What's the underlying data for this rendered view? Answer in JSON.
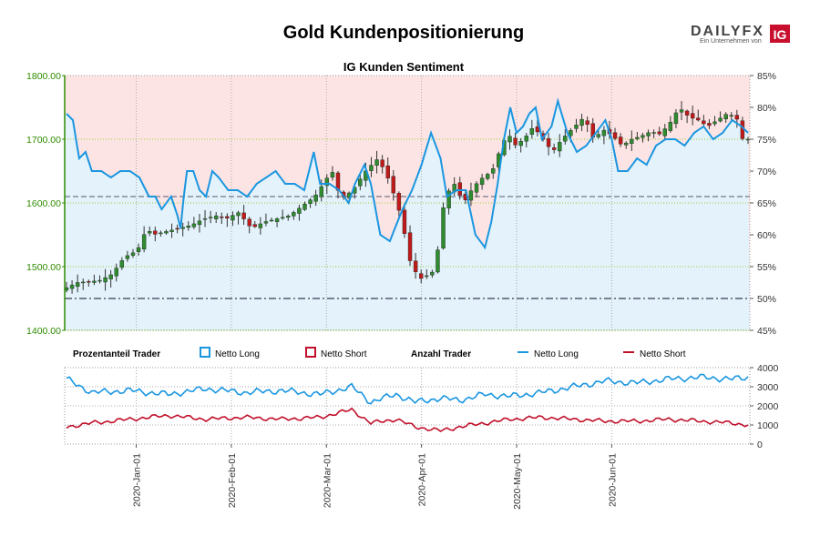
{
  "header": {
    "title": "Gold Kundenpositionierung",
    "logo_text": "DAILYFX",
    "logo_subtext": "Ein Unternehmen von",
    "logo_badge": "IG"
  },
  "chart_data": [
    {
      "type": "candlestick",
      "title": "IG Kunden Sentiment",
      "price_axis": {
        "ticks": [
          "1800.00",
          "1700.00",
          "1600.00",
          "1500.00",
          "1400.00"
        ],
        "ylim": [
          1400,
          1800
        ],
        "color": "#2e8b00"
      },
      "sentiment_axis": {
        "ticks": [
          "85%",
          "80%",
          "75%",
          "70%",
          "65%",
          "60%",
          "55%",
          "50%",
          "45%"
        ],
        "ylim": [
          45,
          85
        ]
      },
      "reference_lines": [
        {
          "value_pct": 66,
          "label": "upper"
        },
        {
          "value_pct": 50,
          "label": "lower"
        }
      ],
      "candle_count": 124,
      "anchors": {
        "price": [
          [
            0,
            1463
          ],
          [
            5,
            1475
          ],
          [
            12,
            1478
          ],
          [
            16,
            1488
          ],
          [
            20,
            1515
          ],
          [
            24,
            1525
          ],
          [
            27,
            1560
          ],
          [
            29,
            1550
          ],
          [
            33,
            1555
          ],
          [
            37,
            1560
          ],
          [
            41,
            1565
          ],
          [
            45,
            1575
          ],
          [
            49,
            1580
          ],
          [
            52,
            1575
          ],
          [
            56,
            1585
          ],
          [
            60,
            1560
          ],
          [
            64,
            1570
          ],
          [
            68,
            1575
          ],
          [
            72,
            1580
          ],
          [
            76,
            1595
          ],
          [
            80,
            1610
          ],
          [
            84,
            1640
          ],
          [
            86,
            1650
          ],
          [
            88,
            1605
          ],
          [
            92,
            1620
          ],
          [
            96,
            1650
          ],
          [
            100,
            1670
          ],
          [
            103,
            1640
          ],
          [
            106,
            1600
          ],
          [
            108,
            1560
          ],
          [
            110,
            1510
          ],
          [
            113,
            1480
          ],
          [
            117,
            1490
          ],
          [
            119,
            1530
          ],
          [
            121,
            1610
          ],
          [
            124,
            1630
          ],
          [
            127,
            1600
          ],
          [
            130,
            1625
          ],
          [
            133,
            1640
          ],
          [
            136,
            1650
          ],
          [
            139,
            1690
          ],
          [
            141,
            1710
          ],
          [
            143,
            1690
          ],
          [
            146,
            1700
          ],
          [
            149,
            1720
          ],
          [
            152,
            1700
          ],
          [
            155,
            1680
          ],
          [
            158,
            1700
          ],
          [
            162,
            1720
          ],
          [
            165,
            1735
          ],
          [
            168,
            1700
          ],
          [
            171,
            1715
          ],
          [
            174,
            1705
          ],
          [
            177,
            1690
          ],
          [
            180,
            1700
          ],
          [
            183,
            1705
          ],
          [
            186,
            1712
          ],
          [
            189,
            1708
          ],
          [
            192,
            1725
          ],
          [
            195,
            1750
          ],
          [
            198,
            1735
          ],
          [
            201,
            1730
          ],
          [
            204,
            1720
          ],
          [
            207,
            1730
          ],
          [
            210,
            1740
          ],
          [
            213,
            1735
          ],
          [
            215,
            1700
          ]
        ],
        "long_pct": [
          [
            0,
            79
          ],
          [
            2,
            78
          ],
          [
            4,
            72
          ],
          [
            6,
            73
          ],
          [
            8,
            70
          ],
          [
            11,
            70
          ],
          [
            14,
            69
          ],
          [
            17,
            70
          ],
          [
            20,
            70
          ],
          [
            23,
            69
          ],
          [
            26,
            66
          ],
          [
            28,
            66
          ],
          [
            30,
            64
          ],
          [
            33,
            66
          ],
          [
            35,
            63
          ],
          [
            36,
            61
          ],
          [
            37,
            66
          ],
          [
            38,
            70
          ],
          [
            40,
            70
          ],
          [
            42,
            67
          ],
          [
            44,
            66
          ],
          [
            46,
            70
          ],
          [
            48,
            69
          ],
          [
            51,
            67
          ],
          [
            54,
            67
          ],
          [
            57,
            66
          ],
          [
            60,
            68
          ],
          [
            63,
            69
          ],
          [
            66,
            70
          ],
          [
            69,
            68
          ],
          [
            72,
            68
          ],
          [
            75,
            67
          ],
          [
            78,
            73
          ],
          [
            80,
            68
          ],
          [
            83,
            68
          ],
          [
            86,
            67
          ],
          [
            89,
            65
          ],
          [
            91,
            68
          ],
          [
            94,
            71
          ],
          [
            96,
            68
          ],
          [
            99,
            60
          ],
          [
            102,
            59
          ],
          [
            106,
            64
          ],
          [
            109,
            67
          ],
          [
            112,
            71
          ],
          [
            115,
            76
          ],
          [
            118,
            72
          ],
          [
            120,
            66
          ],
          [
            123,
            67
          ],
          [
            126,
            67
          ],
          [
            129,
            60
          ],
          [
            132,
            58
          ],
          [
            134,
            62
          ],
          [
            136,
            68
          ],
          [
            138,
            75
          ],
          [
            140,
            80
          ],
          [
            142,
            76
          ],
          [
            144,
            77
          ],
          [
            146,
            79
          ],
          [
            148,
            80
          ],
          [
            150,
            75
          ],
          [
            153,
            77
          ],
          [
            155,
            81
          ],
          [
            158,
            76
          ],
          [
            161,
            73
          ],
          [
            164,
            74
          ],
          [
            167,
            76
          ],
          [
            170,
            78
          ],
          [
            172,
            75
          ],
          [
            174,
            70
          ],
          [
            177,
            70
          ],
          [
            180,
            72
          ],
          [
            183,
            71
          ],
          [
            186,
            74
          ],
          [
            189,
            75
          ],
          [
            192,
            75
          ],
          [
            195,
            74
          ],
          [
            198,
            76
          ],
          [
            201,
            77
          ],
          [
            204,
            75
          ],
          [
            207,
            76
          ],
          [
            210,
            78
          ],
          [
            213,
            77
          ],
          [
            215,
            76
          ]
        ],
        "long_count": [
          [
            0,
            3400
          ],
          [
            8,
            2700
          ],
          [
            20,
            2800
          ],
          [
            32,
            2600
          ],
          [
            44,
            2900
          ],
          [
            56,
            2700
          ],
          [
            68,
            2800
          ],
          [
            80,
            2600
          ],
          [
            90,
            3000
          ],
          [
            96,
            2200
          ],
          [
            104,
            2600
          ],
          [
            110,
            2200
          ],
          [
            118,
            2400
          ],
          [
            124,
            2300
          ],
          [
            132,
            2600
          ],
          [
            140,
            2500
          ],
          [
            150,
            2700
          ],
          [
            160,
            3000
          ],
          [
            170,
            3300
          ],
          [
            180,
            3200
          ],
          [
            190,
            3400
          ],
          [
            200,
            3500
          ],
          [
            210,
            3400
          ],
          [
            215,
            3500
          ]
        ],
        "short_count": [
          [
            0,
            900
          ],
          [
            8,
            1100
          ],
          [
            20,
            1300
          ],
          [
            32,
            1500
          ],
          [
            44,
            1300
          ],
          [
            56,
            1400
          ],
          [
            68,
            1300
          ],
          [
            80,
            1400
          ],
          [
            90,
            1800
          ],
          [
            96,
            1100
          ],
          [
            104,
            1300
          ],
          [
            110,
            900
          ],
          [
            118,
            700
          ],
          [
            124,
            900
          ],
          [
            132,
            1100
          ],
          [
            140,
            1300
          ],
          [
            150,
            1400
          ],
          [
            160,
            1300
          ],
          [
            170,
            1200
          ],
          [
            180,
            1200
          ],
          [
            190,
            1300
          ],
          [
            200,
            1200
          ],
          [
            210,
            1100
          ],
          [
            215,
            1000
          ]
        ]
      }
    },
    {
      "type": "line",
      "y_axis": {
        "ticks": [
          "4000",
          "3000",
          "2000",
          "1000",
          "0"
        ],
        "ylim": [
          0,
          4000
        ]
      },
      "legend": {
        "group1_label": "Prozentanteil Trader",
        "group1_long": "Netto Long",
        "group1_short": "Netto Short",
        "group2_label": "Anzahl Trader",
        "group2_long": "Netto Long",
        "group2_short": "Netto Short"
      },
      "x_ticks": [
        "2020-Jan-01",
        "2020-Feb-01",
        "2020-Mar-01",
        "2020-Apr-01",
        "2020-May-01",
        "2020-Jun-01"
      ],
      "x_tick_index": [
        22,
        52,
        82,
        112,
        142,
        172
      ]
    }
  ],
  "colors": {
    "long": "#1a96e0",
    "short": "#c0102a",
    "bg_upper": "#fde4e4",
    "bg_lower": "#e3f2fb",
    "grid": "#9acd32",
    "up_candle": "#2e8b2e",
    "down_candle": "#c01a1a",
    "ref_line": "#555a70"
  }
}
